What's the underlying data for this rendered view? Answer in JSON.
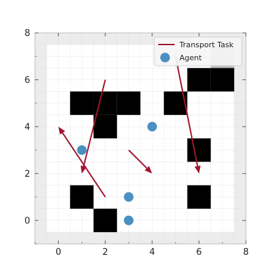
{
  "chart_data": {
    "type": "scatter",
    "title": "",
    "xlabel": "",
    "ylabel": "",
    "xlim": [
      -1,
      8
    ],
    "ylim": [
      -1,
      8
    ],
    "xticks": [
      0,
      2,
      4,
      6,
      8
    ],
    "yticks": [
      0,
      2,
      4,
      6,
      8
    ],
    "grid": true,
    "legend_position": "top-right",
    "colors": {
      "task": "#a2142f",
      "agent": "#4a90c2",
      "obstacle": "#000000",
      "free": "#ffffff",
      "border": "#ececec",
      "unknown": "#bdbdbd",
      "grid": "#d9d9d9"
    },
    "grid_area": {
      "x_range": [
        -0.5,
        7.5
      ],
      "y_range": [
        -0.5,
        7.5
      ]
    },
    "obstacles": [
      [
        1,
        5
      ],
      [
        2,
        5
      ],
      [
        3,
        5
      ],
      [
        5,
        5
      ],
      [
        2,
        4
      ],
      [
        6,
        3
      ],
      [
        1,
        1
      ],
      [
        6,
        1
      ],
      [
        2,
        0
      ],
      [
        6,
        6
      ],
      [
        7,
        6
      ]
    ],
    "unknown_cells": [
      [
        7,
        7
      ]
    ],
    "agents": [
      {
        "x": 1,
        "y": 3
      },
      {
        "x": 4,
        "y": 4
      },
      {
        "x": 3,
        "y": 1
      },
      {
        "x": 3,
        "y": 0
      }
    ],
    "tasks": [
      {
        "start": [
          2,
          6
        ],
        "end": [
          1,
          2
        ]
      },
      {
        "start": [
          2,
          1
        ],
        "end": [
          0,
          4
        ]
      },
      {
        "start": [
          3,
          3
        ],
        "end": [
          4,
          2
        ]
      },
      {
        "start": [
          5,
          7
        ],
        "end": [
          6,
          2
        ]
      }
    ],
    "legend": {
      "task_label": "Transport Task",
      "agent_label": "Agent"
    }
  }
}
